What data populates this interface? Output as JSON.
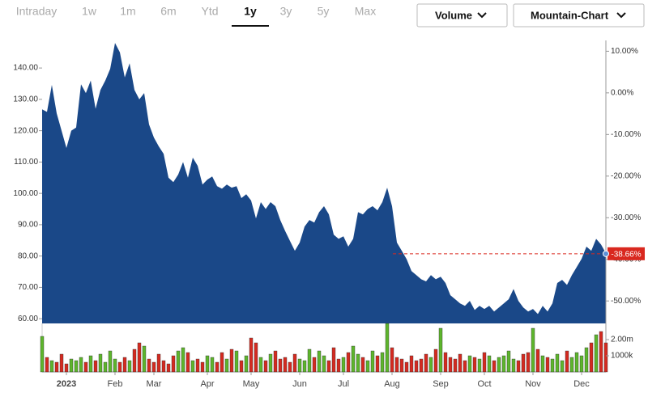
{
  "toolbar": {
    "tabs": [
      "Intraday",
      "1w",
      "1m",
      "6m",
      "Ytd",
      "1y",
      "3y",
      "5y",
      "Max"
    ],
    "selected": 5,
    "buttons": [
      "Volume",
      "Mountain-Chart"
    ]
  },
  "chart_data": {
    "type": "area",
    "color": "#1a4888",
    "categories": [
      null,
      null,
      null,
      null,
      null,
      "2023",
      null,
      null,
      null,
      null,
      null,
      null,
      null,
      null,
      null,
      "Feb",
      null,
      null,
      null,
      null,
      null,
      null,
      null,
      "Mar",
      null,
      null,
      null,
      null,
      null,
      null,
      null,
      null,
      null,
      null,
      "Apr",
      null,
      null,
      null,
      null,
      null,
      null,
      null,
      null,
      "May",
      null,
      null,
      null,
      null,
      null,
      null,
      null,
      null,
      null,
      "Jun",
      null,
      null,
      null,
      null,
      null,
      null,
      null,
      null,
      "Jul",
      null,
      null,
      null,
      null,
      null,
      null,
      null,
      null,
      null,
      "Aug",
      null,
      null,
      null,
      null,
      null,
      null,
      null,
      null,
      null,
      "Sep",
      null,
      null,
      null,
      null,
      null,
      null,
      null,
      null,
      "Oct",
      null,
      null,
      null,
      null,
      null,
      null,
      null,
      null,
      null,
      "Nov",
      null,
      null,
      null,
      null,
      null,
      null,
      null,
      null,
      null,
      "Dec",
      null,
      null,
      null,
      null,
      null
    ],
    "values": [
      126.8,
      126,
      134.6,
      125.5,
      120,
      114.5,
      120,
      121,
      134.8,
      132,
      136,
      127,
      133,
      136,
      139.7,
      148,
      145,
      137,
      141.5,
      133,
      130,
      132,
      122,
      117.8,
      115,
      112.6,
      105,
      103.6,
      106,
      110,
      105,
      111.4,
      108.8,
      102.8,
      104.4,
      105.4,
      102.3,
      101.5,
      102.8,
      101.8,
      102.3,
      98.5,
      99.7,
      97.7,
      92,
      97.2,
      95,
      97.2,
      95.9,
      91.5,
      88,
      84.8,
      81.7,
      84.3,
      89.4,
      91.5,
      90.7,
      94,
      95.9,
      93.3,
      86.8,
      85.5,
      86.3,
      83,
      85.5,
      94,
      93.3,
      95,
      95.9,
      94.6,
      97.2,
      101.8,
      95.9,
      84.3,
      81.7,
      79,
      75.2,
      73.9,
      72.6,
      71.9,
      73.9,
      72.6,
      73.4,
      71.4,
      67.5,
      66.2,
      64.9,
      64.1,
      65.7,
      62.8,
      64.1,
      63.1,
      64.1,
      62.3,
      63.6,
      64.9,
      66.2,
      69.5,
      65.7,
      63.6,
      62.3,
      63.1,
      61.5,
      64.1,
      62.3,
      64.9,
      71.4,
      72.4,
      70.8,
      73.9,
      76.5,
      79.1,
      83,
      81.7,
      85.5,
      83.7,
      80.9
    ],
    "ylim": [
      58.5,
      148.8
    ],
    "yticks": [
      {
        "value": 60,
        "label": "60.00"
      },
      {
        "value": 70,
        "label": "70.00"
      },
      {
        "value": 80,
        "label": "80.00"
      },
      {
        "value": 90,
        "label": "90.00"
      },
      {
        "value": 100,
        "label": "100.00"
      },
      {
        "value": 110,
        "label": "110.00"
      },
      {
        "value": 120,
        "label": "120.00"
      },
      {
        "value": 130,
        "label": "130.00"
      },
      {
        "value": 140,
        "label": "140.00"
      }
    ],
    "y2lim": [
      -55.4,
      12.6
    ],
    "y2ticks": [
      {
        "value": 10,
        "label": "10.00%"
      },
      {
        "value": 0,
        "label": "0.00%"
      },
      {
        "value": -10,
        "label": "-10.00%"
      },
      {
        "value": -20,
        "label": "-20.00%"
      },
      {
        "value": -30,
        "label": "-30.00%"
      },
      {
        "value": -40,
        "label": "-40.00%"
      },
      {
        "value": -50,
        "label": "-50.00%"
      }
    ],
    "marker": {
      "value": -38.66,
      "label": "-38.66%",
      "color": "#d9281f"
    },
    "volume": {
      "up_color": "#5db52c",
      "down_color": "#d42a20",
      "ylim": [
        0,
        3000
      ],
      "yticks": [
        {
          "value": 2000,
          "label": "2.00m"
        },
        {
          "value": 1000,
          "label": "1000k"
        }
      ],
      "values": [
        2200,
        900,
        700,
        600,
        1100,
        500,
        800,
        700,
        900,
        600,
        1000,
        700,
        1100,
        600,
        1300,
        800,
        600,
        900,
        700,
        1400,
        1800,
        1600,
        800,
        600,
        1100,
        700,
        500,
        1000,
        1300,
        1500,
        1200,
        700,
        800,
        600,
        1000,
        900,
        600,
        1200,
        800,
        1400,
        1300,
        700,
        1000,
        2100,
        1800,
        900,
        700,
        1100,
        1300,
        800,
        900,
        600,
        1100,
        800,
        700,
        1400,
        900,
        1300,
        1000,
        700,
        1500,
        800,
        900,
        1200,
        1600,
        1100,
        900,
        700,
        1300,
        1000,
        1200,
        3000,
        1500,
        900,
        800,
        600,
        1000,
        700,
        800,
        1100,
        900,
        1400,
        2700,
        1200,
        900,
        800,
        1100,
        700,
        1000,
        900,
        800,
        1200,
        1000,
        700,
        900,
        1000,
        1300,
        800,
        700,
        1100,
        1200,
        2700,
        1400,
        1000,
        900,
        800,
        1100,
        700,
        1300,
        900,
        1200,
        1000,
        1500,
        1800,
        2300,
        2500,
        1800
      ]
    }
  }
}
